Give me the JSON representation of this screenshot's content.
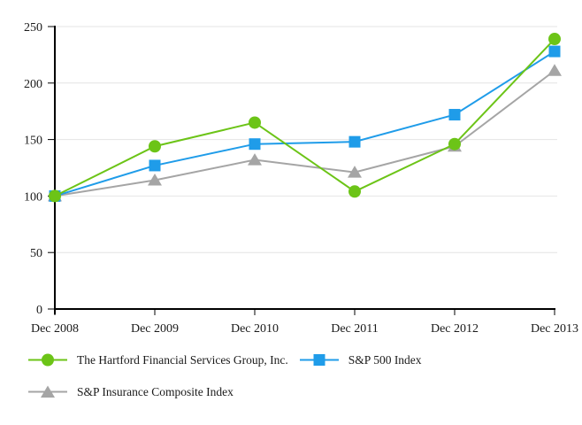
{
  "chart_data": {
    "type": "line",
    "title": "",
    "categories": [
      "Dec 2008",
      "Dec 2009",
      "Dec 2010",
      "Dec 2011",
      "Dec 2012",
      "Dec 2013"
    ],
    "series": [
      {
        "name": "The Hartford Financial Services Group, Inc.",
        "marker": "circle",
        "color": "#6cc417",
        "values": [
          100,
          144,
          165,
          104,
          146,
          239
        ]
      },
      {
        "name": "S&P 500 Index",
        "marker": "square",
        "color": "#1f9ce9",
        "values": [
          100,
          127,
          146,
          148,
          172,
          228
        ]
      },
      {
        "name": "S&P Insurance Composite Index",
        "marker": "triangle",
        "color": "#a5a5a5",
        "values": [
          100,
          114,
          132,
          121,
          144,
          211
        ]
      }
    ],
    "y_axis": {
      "min": 0,
      "max": 250,
      "step": 50,
      "ticks": [
        0,
        50,
        100,
        150,
        200,
        250
      ]
    },
    "x_axis": {
      "label": "",
      "tick_marks": true
    },
    "grid": true,
    "legend_position": "bottom",
    "legend_rows": [
      [
        0,
        1
      ],
      [
        2
      ]
    ],
    "colors": {
      "axis": "#000000",
      "gridline": "#e4e4e4",
      "text": "#1a1a1a",
      "background": "#ffffff"
    }
  }
}
